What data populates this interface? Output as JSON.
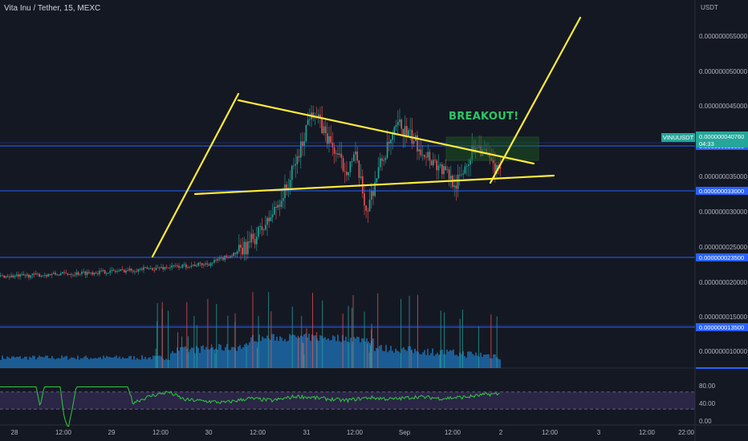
{
  "header": {
    "symbol_text": "Vita Inu / Tether, 15, MEXC",
    "currency": "USDT"
  },
  "annotation": {
    "text": "BREAKOUT!"
  },
  "price_tag": {
    "label": "VINUUSDT",
    "price": "0.000000040760",
    "countdown": "04:33"
  },
  "colors": {
    "background": "#141823",
    "bull": "#26a69a",
    "bear": "#ef5350",
    "hline": "#2962ff",
    "trend": "#ffeb3b",
    "rsi": "#2ecc40",
    "volume": "#2196f3",
    "rsi_band": "#7e57c2",
    "breakout": "#2bc767"
  },
  "chart_data": {
    "type": "candlestick",
    "title": "Vita Inu / Tether, 15, MEXC",
    "y_unit": "USDT",
    "ylim": [
      5.5e-09,
      5.9e-08
    ],
    "y_ticks": [
      "0.000000055000",
      "0.000000050000",
      "0.000000045000",
      "0.000000035000",
      "0.000000030000",
      "0.000000025000",
      "0.000000020000",
      "0.000000015000",
      "0.000000010000"
    ],
    "x_ticks": [
      "28",
      "12:00",
      "29",
      "12:00",
      "30",
      "12:00",
      "31",
      "12:00",
      "Sep",
      "12:00",
      "2",
      "12:00",
      "3",
      "12:00",
      "22:00"
    ],
    "horizontal_levels": [
      "0.000000039500",
      "0.000000033000",
      "0.000000023500",
      "0.000000013500"
    ],
    "last_price": "0.000000040760",
    "price_path": [
      {
        "t": 0,
        "p": 2.18e-08
      },
      {
        "t": 0.6,
        "p": 2.22e-08
      },
      {
        "t": 1,
        "p": 2.25e-08
      },
      {
        "t": 1.6,
        "p": 2.31e-08
      },
      {
        "t": 2,
        "p": 2.36e-08
      },
      {
        "t": 2.35,
        "p": 2.55e-08
      },
      {
        "t": 2.6,
        "p": 2.95e-08
      },
      {
        "t": 2.8,
        "p": 3.45e-08
      },
      {
        "t": 2.95,
        "p": 4.05e-08
      },
      {
        "t": 3.05,
        "p": 4.6e-08
      },
      {
        "t": 3.2,
        "p": 4.2e-08
      },
      {
        "t": 3.4,
        "p": 3.7e-08
      },
      {
        "t": 3.5,
        "p": 3.9e-08
      },
      {
        "t": 3.62,
        "p": 3.1e-08
      },
      {
        "t": 3.75,
        "p": 3.75e-08
      },
      {
        "t": 3.95,
        "p": 4.35e-08
      },
      {
        "t": 4.15,
        "p": 4.05e-08
      },
      {
        "t": 4.4,
        "p": 3.7e-08
      },
      {
        "t": 4.55,
        "p": 3.5e-08
      },
      {
        "t": 4.75,
        "p": 4.1e-08
      },
      {
        "t": 5.0,
        "p": 3.6e-08
      },
      {
        "t": 5.3,
        "p": 3.65e-08
      },
      {
        "t": 5.5,
        "p": 3.85e-08
      },
      {
        "t": 5.8,
        "p": 3.9e-08
      },
      {
        "t": 6.0,
        "p": 4e-08
      },
      {
        "t": 6.1,
        "p": 4.08e-08
      }
    ],
    "rsi": {
      "levels": [
        "80.00",
        "40.00",
        "0.00"
      ],
      "upper_band": 70,
      "lower_band": 30,
      "path": [
        {
          "t": 0,
          "p": 82
        },
        {
          "t": 0.45,
          "p": 82
        },
        {
          "t": 0.5,
          "p": 35
        },
        {
          "t": 0.55,
          "p": 82
        },
        {
          "t": 0.75,
          "p": 82
        },
        {
          "t": 0.8,
          "p": 10
        },
        {
          "t": 0.85,
          "p": -15
        },
        {
          "t": 0.9,
          "p": 30
        },
        {
          "t": 0.95,
          "p": 82
        },
        {
          "t": 1.6,
          "p": 82
        },
        {
          "t": 1.65,
          "p": 45
        },
        {
          "t": 1.9,
          "p": 62
        },
        {
          "t": 2.1,
          "p": 70
        },
        {
          "t": 2.3,
          "p": 52
        },
        {
          "t": 2.6,
          "p": 48
        },
        {
          "t": 2.8,
          "p": 45
        },
        {
          "t": 3.1,
          "p": 55
        },
        {
          "t": 3.4,
          "p": 50
        },
        {
          "t": 3.7,
          "p": 60
        },
        {
          "t": 4.0,
          "p": 55
        },
        {
          "t": 4.3,
          "p": 50
        },
        {
          "t": 4.6,
          "p": 57
        },
        {
          "t": 4.9,
          "p": 53
        },
        {
          "t": 5.2,
          "p": 59
        },
        {
          "t": 5.5,
          "p": 55
        },
        {
          "t": 5.8,
          "p": 58
        },
        {
          "t": 6.1,
          "p": 65
        }
      ]
    }
  }
}
